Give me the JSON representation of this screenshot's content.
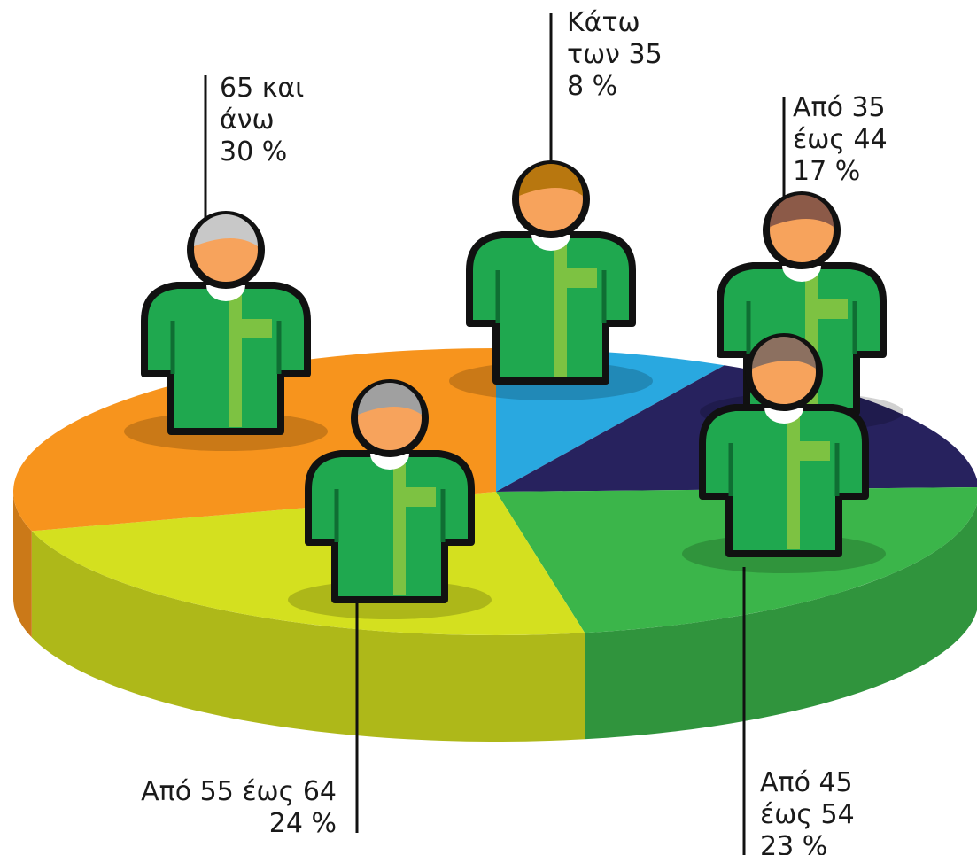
{
  "chart_data": {
    "type": "pie3d",
    "categories": [
      "Κάτω των 35",
      "Από 35 έως 44",
      "Από 45 έως 54",
      "Από 55 έως 64",
      "65 και άνω"
    ],
    "values": [
      8,
      17,
      23,
      24,
      30
    ],
    "value_labels": [
      "8 %",
      "17 %",
      "23 %",
      "24 %",
      "30 %"
    ],
    "colors": [
      "#29a8e0",
      "#27225e",
      "#3bb54a",
      "#d4e01f",
      "#f7941d"
    ]
  }
}
